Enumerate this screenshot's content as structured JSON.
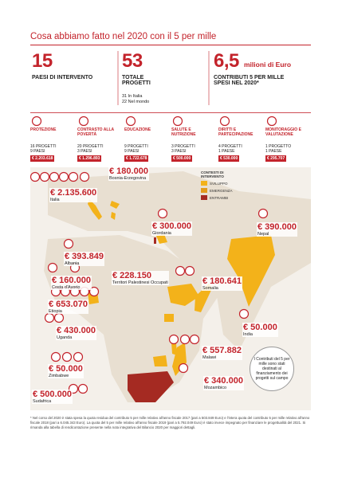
{
  "header": {
    "title": "Cosa abbiamo fatto nel 2020 con il 5 per mille"
  },
  "stats": [
    {
      "number": "15",
      "label": "PAESI DI INTERVENTO"
    },
    {
      "number": "53",
      "label": "TOTALE PROGETTI",
      "details": [
        "31 In Italia",
        "22 Nel mondo"
      ]
    },
    {
      "number": "6,5",
      "unit": "milioni di Euro",
      "label": "CONTRIBUTI 5 PER MILLE SPESI NEL 2020*"
    }
  ],
  "areas": [
    {
      "name": "PROTEZIONE",
      "projects": "16 PROGETTI",
      "countries": "9 PAESI",
      "amount": "€ 2.203.618"
    },
    {
      "name": "CONTRASTO ALLA POVERTÀ",
      "projects": "20 PROGETTI",
      "countries": "3 PAESI",
      "amount": "€ 1.296.893"
    },
    {
      "name": "EDUCAZIONE",
      "projects": "9 PROGETTI",
      "countries": "9 PAESI",
      "amount": "€ 1.722.678"
    },
    {
      "name": "SALUTE E NUTRIZIONE",
      "projects": "3 PROGETTI",
      "countries": "3 PAESI",
      "amount": "€ 500.000"
    },
    {
      "name": "DIRITTI E PARTECIPAZIONE",
      "projects": "4 PROGETTI",
      "countries": "1 PAESE",
      "amount": "€ 530.000"
    },
    {
      "name": "MONITORAGGIO E VALUTAZIONE",
      "projects": "1 PROGETTO",
      "countries": "1 PAESE",
      "amount": "€ 295.707"
    }
  ],
  "legend": {
    "title": "CONTESTI DI INTERVENTO",
    "items": [
      "SVILUPPO",
      "EMERGENZA",
      "ENTRAMBI"
    ]
  },
  "countries": [
    {
      "amount": "€ 2.135.600",
      "name": "Italia"
    },
    {
      "amount": "€ 180.000",
      "name": "Bosnia-Erzegovina"
    },
    {
      "amount": "€ 300.000",
      "name": "Giordania"
    },
    {
      "amount": "€ 390.000",
      "name": "Nepal"
    },
    {
      "amount": "€ 393.849",
      "name": "Albania"
    },
    {
      "amount": "€ 160.000",
      "name": "Costa d'Avorio"
    },
    {
      "amount": "€ 228.150",
      "name": "Territori Palestinesi Occupati"
    },
    {
      "amount": "€ 180.641",
      "name": "Somalia"
    },
    {
      "amount": "€ 653.070",
      "name": "Etiopia"
    },
    {
      "amount": "€ 430.000",
      "name": "Uganda"
    },
    {
      "amount": "€ 50.000",
      "name": "India"
    },
    {
      "amount": "€ 557.882",
      "name": "Malawi"
    },
    {
      "amount": "€ 50.000",
      "name": "Zimbabwe"
    },
    {
      "amount": "€ 340.000",
      "name": "Mozambico"
    },
    {
      "amount": "€ 500.000",
      "name": "Sudafrica"
    }
  ],
  "side_note": "I Contributi del 5 per mille sono stati destinati al finanziamento dei progetti sul campo",
  "footnote": "* Nel corso del 2020 è stata spesa la quota residua del contributo 5 per mille relativo all'anno fiscale 2017 (pari a 503.849 Euro) e l'intera quota del contributo 5 per mille relativo all'anno fiscale 2018 (pari a 6.045.343 Euro). La quota del 5 per mille relativo all'anno fiscale 2019 (pari a 5.792.049 Euro) è stato invece impegnato per finanziare le progettualità del 2021. Si rimanda alla tabella di rendicontazione presente nella nota integrativa del Bilancio 2020 per maggiori dettagli."
}
